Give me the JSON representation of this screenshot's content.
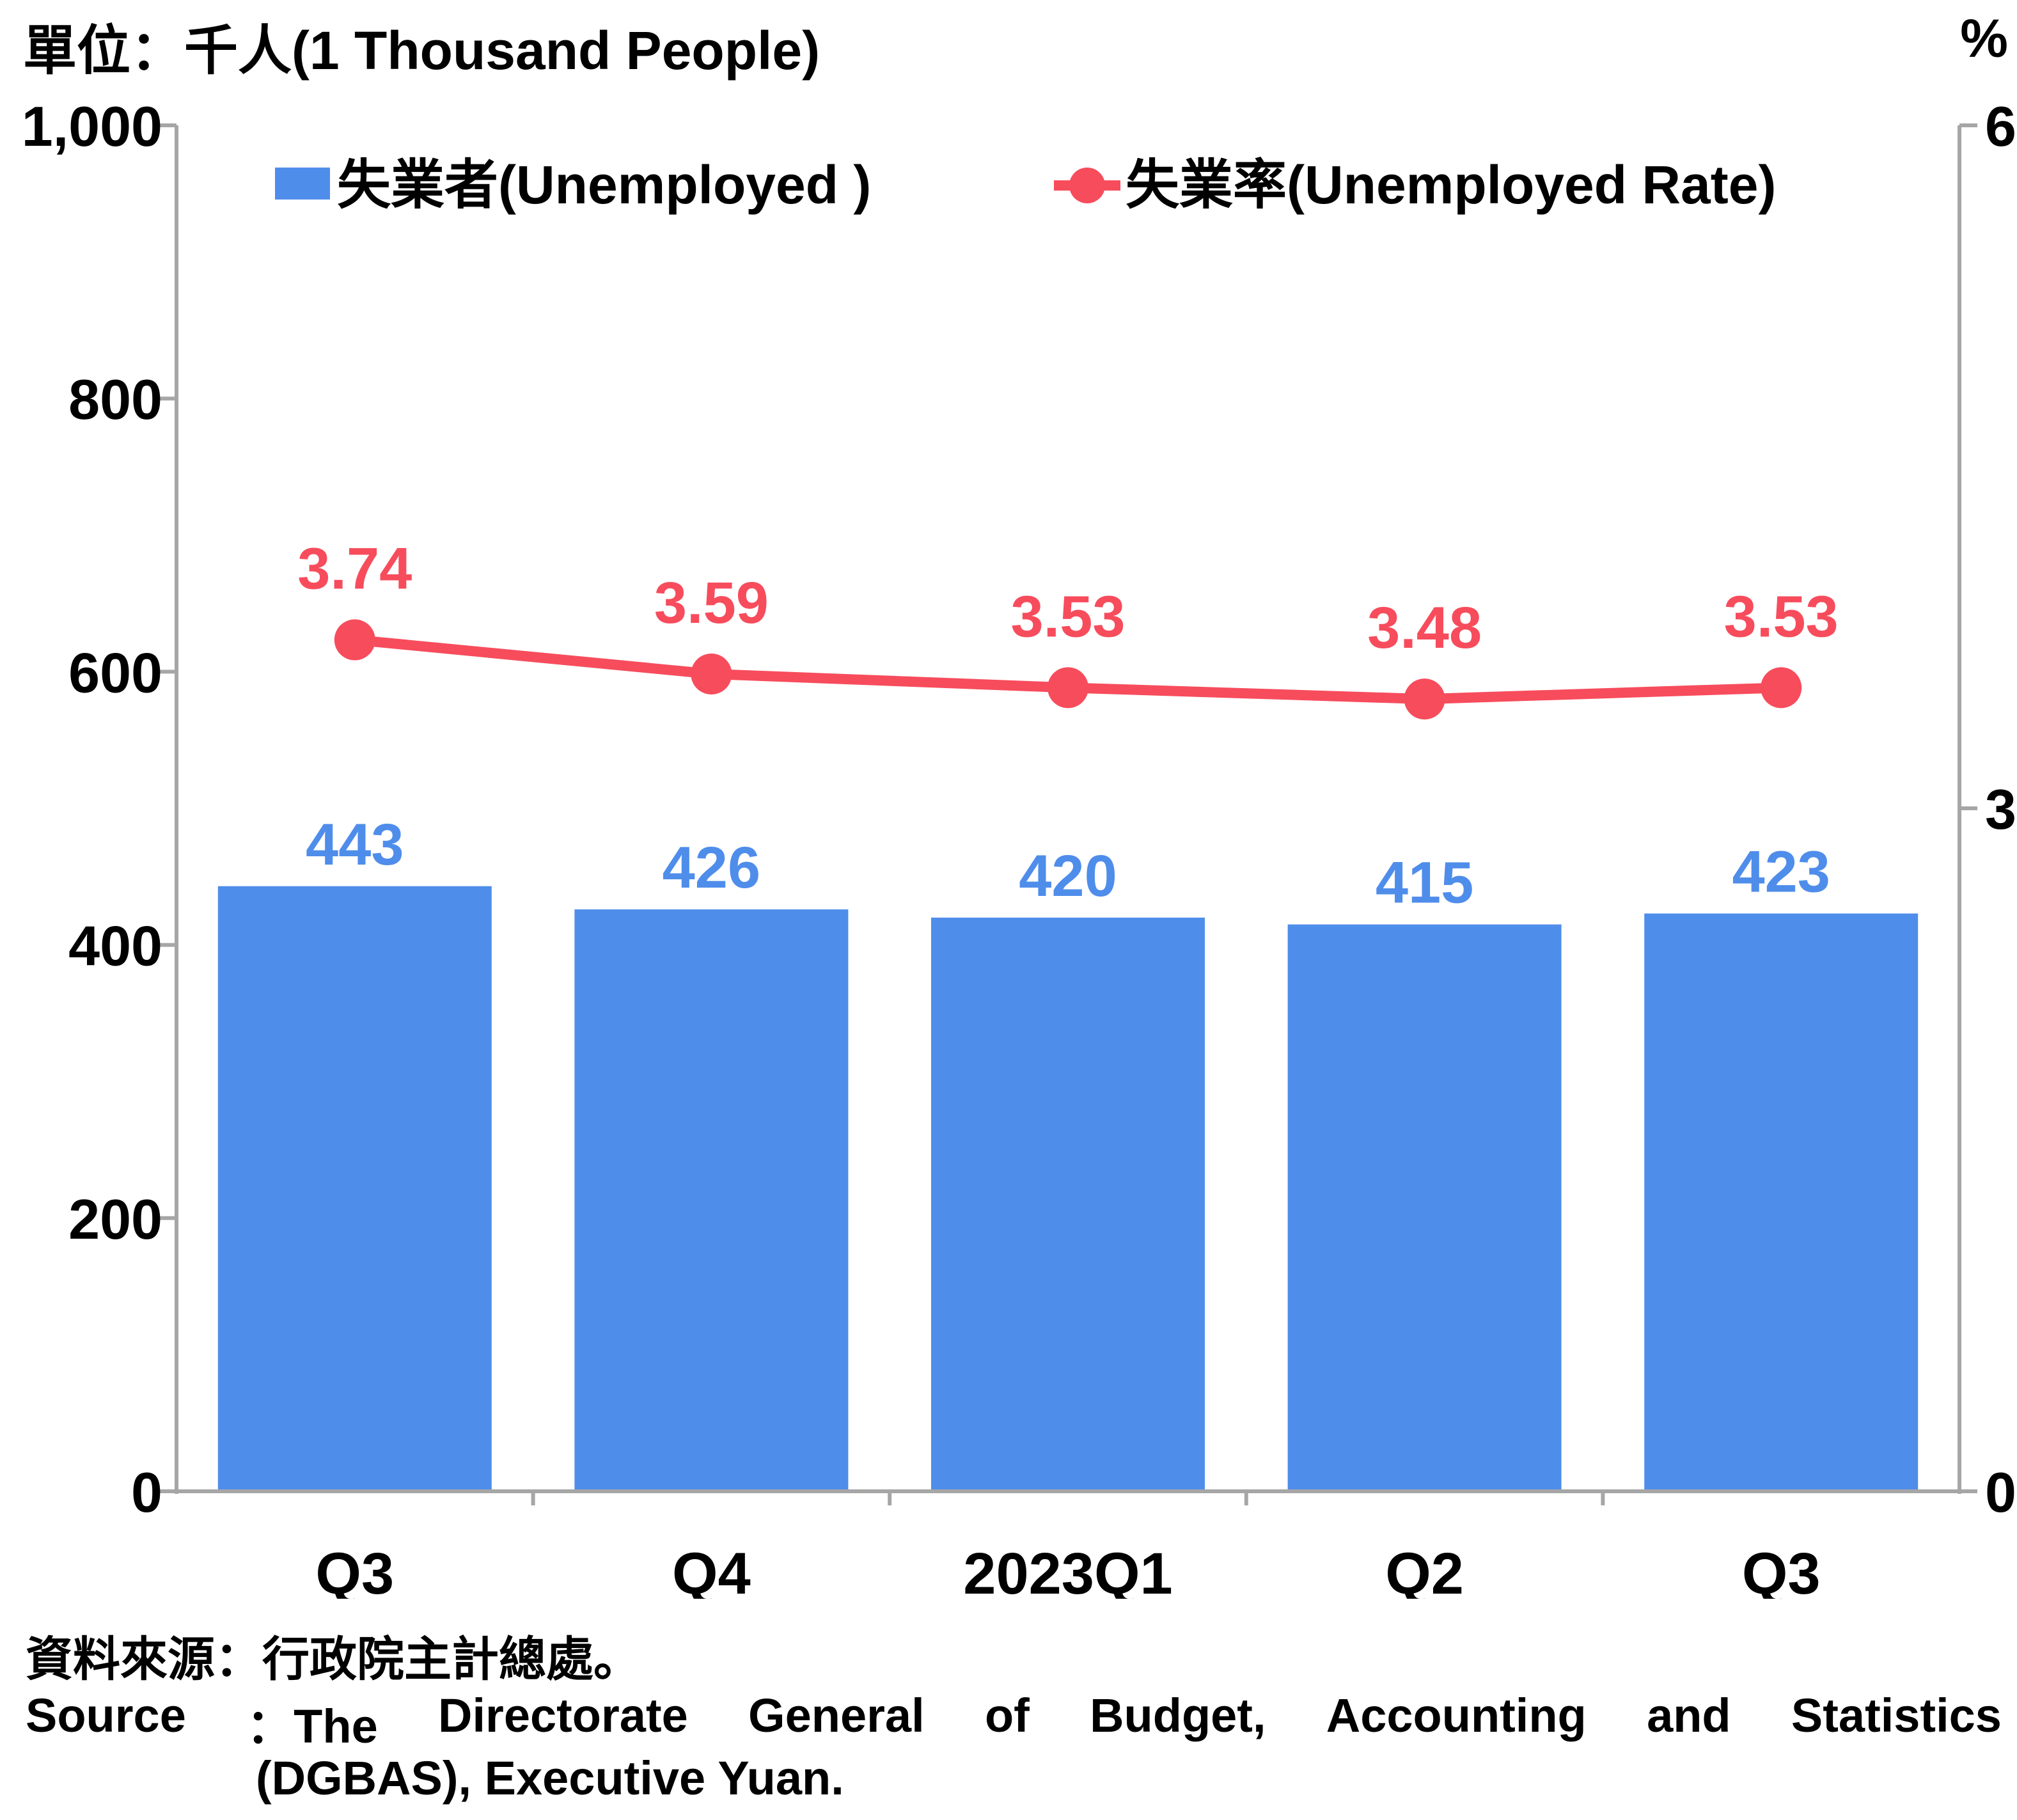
{
  "units": {
    "left": "單位：千人(1 Thousand People)",
    "right": "%"
  },
  "legend": {
    "bars": "失業者(Unemployed )",
    "line": "失業率(Unemployed Rate)"
  },
  "source": {
    "zh": "資料來源：行政院主計總處。",
    "en_line1_words": [
      "Source",
      "：The",
      "Directorate",
      "General",
      "of",
      "Budget,",
      "Accounting",
      "and",
      "Statistics"
    ],
    "en_line2": "(DGBAS), Executive Yuan."
  },
  "colors": {
    "bars": "#4f8deb",
    "line": "#f74c5c",
    "axis": "#a6a6a6",
    "text": "#000000"
  },
  "chart_data": {
    "type": "bar",
    "categories": [
      "Q3",
      "Q4",
      "2023Q1",
      "Q2",
      "Q3"
    ],
    "series": [
      {
        "name": "失業者(Unemployed )",
        "type": "bar",
        "axis": "left",
        "values": [
          443,
          426,
          420,
          415,
          423
        ]
      },
      {
        "name": "失業率(Unemployed Rate)",
        "type": "line",
        "axis": "right",
        "values": [
          3.74,
          3.59,
          3.53,
          3.48,
          3.53
        ]
      }
    ],
    "y_left": {
      "lim": [
        0,
        1000
      ],
      "ticks": [
        0,
        200,
        400,
        600,
        800,
        1000
      ],
      "tick_labels": [
        "0",
        "200",
        "400",
        "600",
        "800",
        "1,000"
      ]
    },
    "y_right": {
      "lim": [
        0,
        6
      ],
      "ticks": [
        0,
        3,
        6
      ],
      "tick_labels": [
        "0",
        "3",
        "6"
      ]
    },
    "grid": false,
    "legend_position": "top"
  }
}
